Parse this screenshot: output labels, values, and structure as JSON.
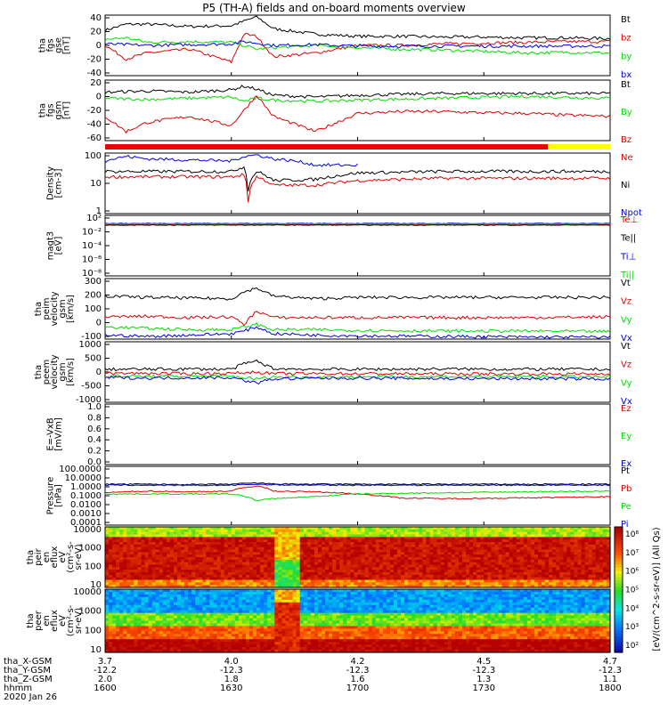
{
  "title": "P5 (TH-A) fields and on-board moments overview",
  "colors": {
    "black": "#000000",
    "red": "#dd0000",
    "green": "#00dd00",
    "blue": "#0000dd",
    "bar_red": "#ee0000",
    "bar_yellow": "#ffff00"
  },
  "chart_data": [
    {
      "type": "line",
      "id": "fgs_gse",
      "ylabel": [
        "tha",
        "fgs",
        "gse",
        "[nT]"
      ],
      "yticks": [
        "40",
        "20",
        "0",
        "-20",
        "-40"
      ],
      "ylim": [
        -40,
        40
      ],
      "log": false,
      "series": [
        {
          "name": "Bt",
          "color": "#000000",
          "x": [
            1600,
            1605,
            1610,
            1620,
            1630,
            1633,
            1636,
            1640,
            1650,
            1700,
            1710,
            1720,
            1730,
            1740,
            1750,
            1800
          ],
          "y": [
            20,
            28,
            28,
            25,
            26,
            32,
            38,
            22,
            15,
            12,
            12,
            11,
            11,
            10,
            10,
            9
          ]
        },
        {
          "name": "bz",
          "color": "#dd0000",
          "x": [
            1600,
            1605,
            1610,
            1620,
            1630,
            1633,
            1636,
            1640,
            1650,
            1700,
            1710,
            1720,
            1730,
            1740,
            1750,
            1800
          ],
          "y": [
            0,
            -18,
            -10,
            -5,
            -22,
            15,
            12,
            -15,
            -10,
            0,
            0,
            2,
            3,
            4,
            5,
            5
          ]
        },
        {
          "name": "by",
          "color": "#00dd00",
          "x": [
            1600,
            1605,
            1610,
            1620,
            1630,
            1633,
            1636,
            1640,
            1650,
            1700,
            1710,
            1720,
            1730,
            1740,
            1750,
            1800
          ],
          "y": [
            8,
            10,
            4,
            5,
            4,
            0,
            -5,
            -3,
            0,
            -3,
            -5,
            -6,
            -8,
            -10,
            -9,
            -10
          ]
        },
        {
          "name": "bx",
          "color": "#0000dd",
          "x": [
            1600,
            1610,
            1620,
            1630,
            1633,
            1636,
            1640,
            1650,
            1700,
            1720,
            1740,
            1800
          ],
          "y": [
            2,
            0,
            1,
            2,
            5,
            3,
            0,
            1,
            -1,
            -1,
            -1,
            -1
          ]
        }
      ]
    },
    {
      "type": "line",
      "id": "fgs_gsm",
      "ylabel": [
        "tha",
        "fgs",
        "gsm",
        "[nT]"
      ],
      "yticks": [
        "20",
        "0",
        "-20",
        "-40",
        "-60"
      ],
      "ylim": [
        -70,
        30
      ],
      "log": false,
      "series": [
        {
          "name": "Bt",
          "color": "#000000",
          "x": [
            1600,
            1610,
            1620,
            1630,
            1633,
            1636,
            1640,
            1650,
            1700,
            1720,
            1740,
            1800
          ],
          "y": [
            10,
            12,
            10,
            14,
            20,
            15,
            5,
            2,
            5,
            8,
            8,
            8
          ]
        },
        {
          "name": "By",
          "color": "#00dd00",
          "x": [
            1600,
            1610,
            1620,
            1630,
            1633,
            1636,
            1640,
            1650,
            1700,
            1720,
            1740,
            1800
          ],
          "y": [
            0,
            -2,
            0,
            2,
            -5,
            0,
            -3,
            -5,
            -3,
            0,
            3,
            0
          ]
        },
        {
          "name": "Bz",
          "color": "#dd0000",
          "x": [
            1600,
            1605,
            1610,
            1620,
            1630,
            1633,
            1636,
            1640,
            1650,
            1700,
            1710,
            1720,
            1730,
            1740,
            1750,
            1800
          ],
          "y": [
            -30,
            -55,
            -40,
            -30,
            -45,
            -20,
            5,
            -30,
            -55,
            -25,
            -22,
            -22,
            -24,
            -25,
            -28,
            -30
          ]
        }
      ]
    },
    {
      "type": "line",
      "id": "density",
      "ylabel": [
        "Density",
        "[cm-3]"
      ],
      "yticks": [
        "100",
        "10",
        "1"
      ],
      "log": true,
      "ylim": [
        1,
        200
      ],
      "series": [
        {
          "name": "Ne",
          "color": "#dd0000",
          "x": [
            1600,
            1610,
            1620,
            1630,
            1633,
            1634,
            1636,
            1640,
            1650,
            1700,
            1720,
            1740,
            1800
          ],
          "y": [
            25,
            25,
            25,
            25,
            30,
            3,
            25,
            12,
            12,
            18,
            22,
            22,
            22
          ]
        },
        {
          "name": "Ni",
          "color": "#000000",
          "x": [
            1600,
            1610,
            1620,
            1630,
            1633,
            1634,
            1636,
            1640,
            1650,
            1700,
            1720,
            1740,
            1800
          ],
          "y": [
            40,
            40,
            40,
            40,
            60,
            8,
            40,
            18,
            20,
            35,
            40,
            40,
            40
          ]
        },
        {
          "name": "Npot",
          "color": "#0000dd",
          "x": [
            1600,
            1605,
            1610,
            1620,
            1630,
            1633,
            1636,
            1640,
            1645,
            1650,
            1700
          ],
          "y": [
            100,
            150,
            120,
            110,
            100,
            150,
            170,
            120,
            100,
            70,
            70
          ]
        }
      ]
    },
    {
      "type": "line",
      "id": "magt3",
      "ylabel": [
        "magt3",
        "[eV]"
      ],
      "yticks": [
        "10²",
        "10⁻²",
        "10⁻⁴",
        "10⁻⁶",
        "10⁻⁸"
      ],
      "log": true,
      "ylim": [
        1e-08,
        10000
      ],
      "series": [
        {
          "name": "Te⊥",
          "color": "#dd0000",
          "x": [
            1600,
            1800
          ],
          "y": [
            150,
            150
          ]
        },
        {
          "name": "Te||",
          "color": "#000000",
          "x": [
            1600,
            1800
          ],
          "y": [
            120,
            120
          ]
        },
        {
          "name": "Ti⊥",
          "color": "#0000dd",
          "x": [
            1600,
            1800
          ],
          "y": [
            250,
            250
          ]
        },
        {
          "name": "Ti||",
          "color": "#00dd00",
          "x": [
            1600,
            1800
          ],
          "y": [
            200,
            200
          ]
        }
      ]
    },
    {
      "type": "line",
      "id": "peim_velocity",
      "ylabel": [
        "tha",
        "peim",
        "velocity",
        "gsm",
        "[km/s]"
      ],
      "yticks": [
        "300",
        "200",
        "100",
        "0",
        "-100"
      ],
      "ylim": [
        -150,
        300
      ],
      "log": false,
      "series": [
        {
          "name": "Vt",
          "color": "#000000",
          "x": [
            1600,
            1610,
            1620,
            1630,
            1633,
            1636,
            1640,
            1650,
            1700,
            1720,
            1740,
            1800
          ],
          "y": [
            170,
            160,
            155,
            150,
            200,
            230,
            170,
            150,
            160,
            160,
            160,
            160
          ]
        },
        {
          "name": "Vz",
          "color": "#dd0000",
          "x": [
            1600,
            1610,
            1620,
            1630,
            1633,
            1636,
            1640,
            1650,
            1700,
            1720,
            1740,
            1800
          ],
          "y": [
            15,
            20,
            10,
            15,
            -40,
            60,
            10,
            10,
            10,
            10,
            10,
            15
          ]
        },
        {
          "name": "Vy",
          "color": "#00dd00",
          "x": [
            1600,
            1610,
            1620,
            1630,
            1633,
            1636,
            1640,
            1650,
            1700,
            1720,
            1740,
            1800
          ],
          "y": [
            -60,
            -70,
            -80,
            -80,
            -60,
            -40,
            -80,
            -80,
            -85,
            -90,
            -90,
            -95
          ]
        },
        {
          "name": "Vx",
          "color": "#0000dd",
          "x": [
            1600,
            1610,
            1620,
            1630,
            1633,
            1636,
            1640,
            1650,
            1700,
            1720,
            1740,
            1800
          ],
          "y": [
            -120,
            -130,
            -120,
            -110,
            -90,
            -60,
            -110,
            -120,
            -125,
            -130,
            -135,
            -135
          ]
        }
      ]
    },
    {
      "type": "line",
      "id": "peem_velocity",
      "ylabel": [
        "tha",
        "peem",
        "velocity",
        "gsm",
        "[km/s]"
      ],
      "yticks": [
        "1000",
        "500",
        "0",
        "-500",
        "-1000"
      ],
      "ylim": [
        -1000,
        1200
      ],
      "log": false,
      "series": [
        {
          "name": "Vt",
          "color": "#000000",
          "x": [
            1600,
            1610,
            1620,
            1630,
            1633,
            1636,
            1640,
            1650,
            1700,
            1720,
            1740,
            1800
          ],
          "y": [
            200,
            200,
            210,
            200,
            400,
            500,
            220,
            200,
            200,
            210,
            200,
            200
          ]
        },
        {
          "name": "Vz",
          "color": "#dd0000",
          "x": [
            1600,
            1610,
            1620,
            1630,
            1636,
            1640,
            1650,
            1700,
            1720,
            1740,
            1800
          ],
          "y": [
            50,
            50,
            40,
            50,
            100,
            40,
            40,
            40,
            30,
            30,
            30
          ]
        },
        {
          "name": "Vy",
          "color": "#00dd00",
          "x": [
            1600,
            1610,
            1620,
            1630,
            1636,
            1640,
            1650,
            1700,
            1720,
            1740,
            1800
          ],
          "y": [
            -50,
            -60,
            -60,
            -50,
            -150,
            -80,
            -80,
            -70,
            -70,
            -70,
            -80
          ]
        },
        {
          "name": "Vx",
          "color": "#0000dd",
          "x": [
            1600,
            1610,
            1620,
            1630,
            1636,
            1640,
            1650,
            1700,
            1720,
            1740,
            1800
          ],
          "y": [
            -100,
            -120,
            -110,
            -100,
            -300,
            -150,
            -130,
            -120,
            -140,
            -140,
            -150
          ]
        }
      ]
    },
    {
      "type": "line",
      "id": "efield",
      "ylabel": [
        "E=-VxB",
        "[mV/m]"
      ],
      "yticks": [
        "1.0",
        "0.8",
        "0.6",
        "0.4",
        "0.2",
        "0.0"
      ],
      "ylim": [
        0,
        1
      ],
      "log": false,
      "series": [
        {
          "name": "Ez",
          "color": "#dd0000",
          "x": [],
          "y": []
        },
        {
          "name": "Ey",
          "color": "#00dd00",
          "x": [],
          "y": []
        },
        {
          "name": "Ex",
          "color": "#0000dd",
          "x": [],
          "y": []
        }
      ]
    },
    {
      "type": "line",
      "id": "pressure",
      "ylabel": [
        "Pressure",
        "[nPa]"
      ],
      "yticks": [
        "100.0000",
        "10.0000",
        "1.0000",
        "0.1000",
        "0.0100",
        "0.0010",
        "0.0001"
      ],
      "log": true,
      "ylim": [
        0.0001,
        100
      ],
      "series": [
        {
          "name": "Pt",
          "color": "#000000",
          "x": [
            1600,
            1610,
            1620,
            1630,
            1636,
            1640,
            1650,
            1700,
            1720,
            1740,
            1800
          ],
          "y": [
            1.5,
            1.5,
            1.4,
            1.5,
            2.0,
            1.6,
            1.5,
            1.5,
            1.5,
            1.5,
            1.5
          ]
        },
        {
          "name": "Pb",
          "color": "#dd0000",
          "x": [
            1600,
            1610,
            1620,
            1630,
            1636,
            1640,
            1650,
            1700,
            1710,
            1720,
            1740,
            1800
          ],
          "y": [
            0.2,
            0.3,
            0.25,
            0.3,
            1.0,
            0.3,
            0.25,
            0.15,
            0.06,
            0.05,
            0.06,
            0.08
          ]
        },
        {
          "name": "Pe",
          "color": "#00dd00",
          "x": [
            1600,
            1610,
            1620,
            1630,
            1636,
            1640,
            1650,
            1700,
            1720,
            1740,
            1800
          ],
          "y": [
            0.15,
            0.15,
            0.15,
            0.15,
            0.03,
            0.05,
            0.08,
            0.15,
            0.2,
            0.25,
            0.3
          ]
        },
        {
          "name": "Pi",
          "color": "#0000dd",
          "x": [
            1600,
            1610,
            1620,
            1630,
            1636,
            1640,
            1650,
            1700,
            1720,
            1740,
            1800
          ],
          "y": [
            1.2,
            1.2,
            1.1,
            1.2,
            1.5,
            1.3,
            1.2,
            1.2,
            1.2,
            1.2,
            1.2
          ]
        }
      ]
    },
    {
      "type": "heatmap",
      "id": "peir_spec",
      "ylabel": [
        "tha",
        "peir",
        "en",
        "eflux",
        "eV",
        "(cm²-s-",
        "sr-eV)"
      ],
      "yticks": [
        "10000",
        "1000",
        "100",
        "10"
      ],
      "log": true,
      "ylim": [
        5,
        25000
      ]
    },
    {
      "type": "heatmap",
      "id": "peer_spec",
      "ylabel": [
        "tha",
        "peer",
        "en",
        "eflux",
        "eV",
        "(cm²-s-",
        "sr-eV)"
      ],
      "yticks": [
        "10000",
        "1000",
        "100",
        "10"
      ],
      "log": true,
      "ylim": [
        5,
        25000
      ]
    }
  ],
  "colorbar": {
    "ticks": [
      "10⁸",
      "10⁷",
      "10⁶",
      "10⁵",
      "10⁴",
      "10³",
      "10²"
    ],
    "label": "[eV/(cm^2-s-sr-eV)] (All Qs)"
  },
  "x_axis": {
    "tick_times": [
      1600,
      1630,
      1700,
      1730,
      1800
    ],
    "rows": [
      {
        "label": "tha_X-GSM",
        "values": [
          "3.7",
          "4.0",
          "4.2",
          "4.5",
          "4.7"
        ]
      },
      {
        "label": "tha_Y-GSM",
        "values": [
          "-12.2",
          "-12.3",
          "-12.3",
          "-12.3",
          "-12.3"
        ]
      },
      {
        "label": "tha_Z-GSM",
        "values": [
          "2.0",
          "1.8",
          "1.6",
          "1.3",
          "1.1"
        ]
      },
      {
        "label": "hhmm",
        "values": [
          "1600",
          "1630",
          "1700",
          "1730",
          "1800"
        ]
      }
    ],
    "date": "2020 Jan 26"
  }
}
